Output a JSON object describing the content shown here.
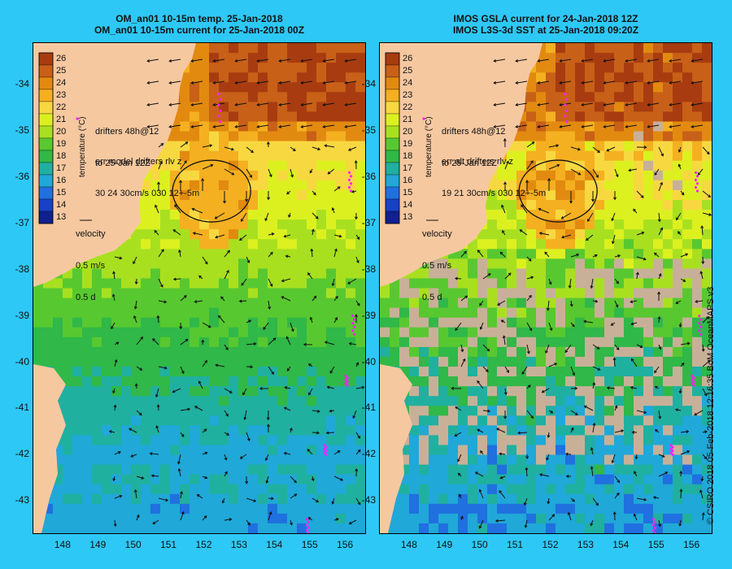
{
  "panels": [
    {
      "title_line1": "OM_an01 10-15m temp. 25-Jan-2018",
      "title_line2": "OM_an01 10-15m current for 25-Jan-2018 00Z",
      "drifters_text": "drifters 48h@12",
      "drifters_date": "to 25-Jan 12Z",
      "err_line1": "err model drifters rlv z",
      "err_line2": "30 24 30cm/s 030 12+-5m",
      "velocity_label": "velocity",
      "velocity_scale": "0.5 m/s",
      "velocity_time": "0.5 d"
    },
    {
      "title_line1": "IMOS GSLA current for 24-Jan-2018 12Z",
      "title_line2": "IMOS L3S-3d SST at 25-Jan-2018 09:20Z",
      "drifters_text": "drifters 48h@12",
      "drifters_date": "to 25-Jan 12Z",
      "err_line1": "err alt drifters rlv z",
      "err_line2": "19 21 30cm/s 030 12+-5m",
      "velocity_label": "velocity",
      "velocity_scale": "0.5 m/s",
      "velocity_time": "0.5 d"
    }
  ],
  "colorbar": {
    "label": "temperature (°C)",
    "ticks": [
      "26",
      "25",
      "24",
      "23",
      "22",
      "21",
      "20",
      "19",
      "18",
      "17",
      "16",
      "15",
      "14",
      "13"
    ],
    "colors": [
      "#a83c10",
      "#c86018",
      "#e28a10",
      "#f4b020",
      "#f8d840",
      "#dcf020",
      "#a8e020",
      "#58c830",
      "#30b848",
      "#20b0a0",
      "#20a8d8",
      "#2070e0",
      "#1840c8",
      "#102090"
    ]
  },
  "y_ticks": [
    "-34",
    "-35",
    "-36",
    "-37",
    "-38",
    "-39",
    "-40",
    "-41",
    "-42",
    "-43"
  ],
  "x_ticks": [
    "148",
    "149",
    "150",
    "151",
    "152",
    "153",
    "154",
    "155",
    "156"
  ],
  "credit": "© CSIRO 2018   05-Feb-2018 12:16:35 BoM OceanMAPS v3",
  "map": {
    "lon_range": [
      147.15,
      156.55
    ],
    "lat_range": [
      -43.7,
      -33.1
    ]
  }
}
